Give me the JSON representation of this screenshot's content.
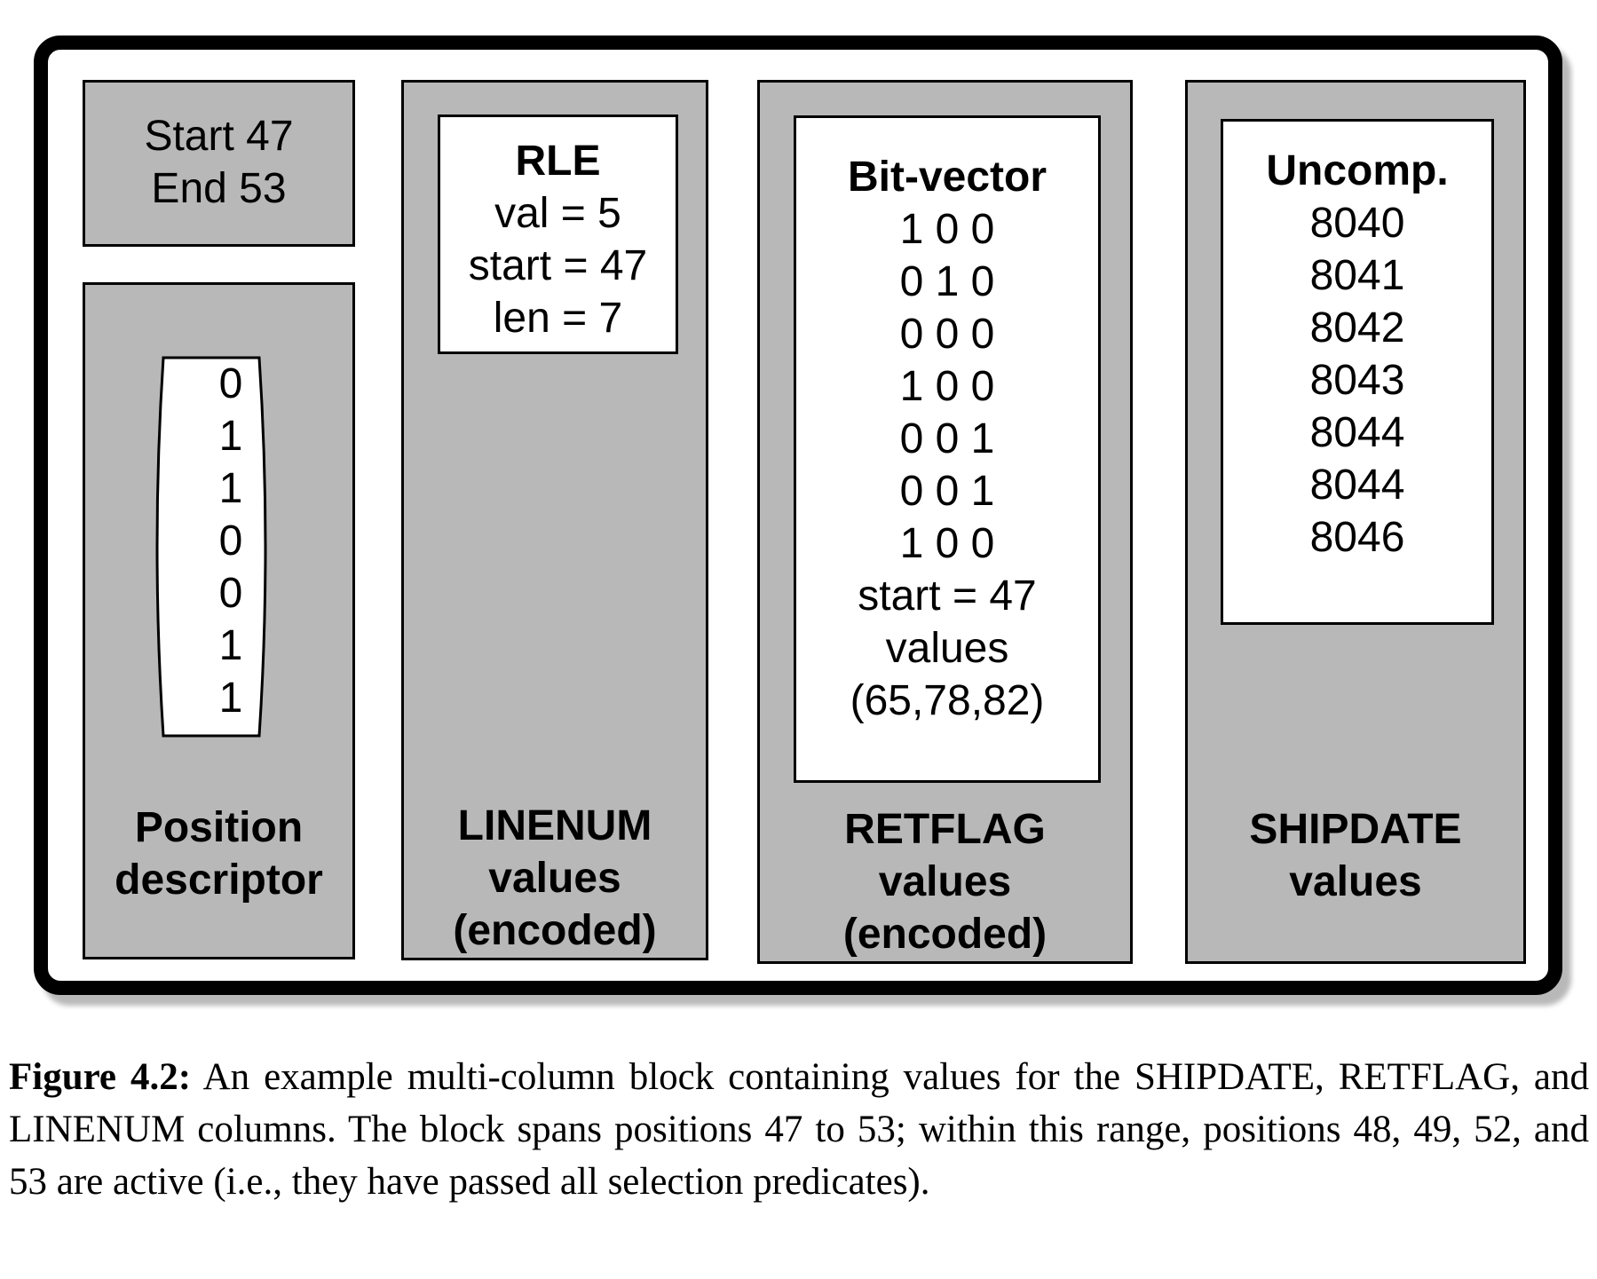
{
  "range": {
    "start_line": "Start 47",
    "end_line": "End 53"
  },
  "position_descriptor": {
    "bits": [
      "0",
      "1",
      "1",
      "0",
      "0",
      "1",
      "1"
    ],
    "label_lines": [
      "Position",
      "descriptor"
    ]
  },
  "linenum": {
    "encoding_title": "RLE",
    "lines": [
      "val = 5",
      "start = 47",
      "len = 7"
    ],
    "label_lines": [
      "LINENUM",
      "values",
      "(encoded)"
    ]
  },
  "retflag": {
    "encoding_title": "Bit-vector",
    "bit_rows": [
      "1 0 0",
      "0 1 0",
      "0 0 0",
      "1 0 0",
      "0 0 1",
      "0 0 1",
      "1 0 0"
    ],
    "start_line": "start = 47",
    "values_line": "values",
    "values_list": "(65,78,82)",
    "label_lines": [
      "RETFLAG",
      "values",
      "(encoded)"
    ]
  },
  "shipdate": {
    "encoding_title": "Uncomp.",
    "values": [
      "8040",
      "8041",
      "8042",
      "8043",
      "8044",
      "8044",
      "8046"
    ],
    "label_lines": [
      "SHIPDATE",
      "values"
    ]
  },
  "caption": {
    "label": "Figure 4.2:",
    "text": "An example multi-column block containing values for the SHIPDATE, RETFLAG, and LINENUM columns. The block spans positions 47 to 53; within this range, positions 48, 49, 52, and 53 are active (i.e., they have passed all selection predicates)."
  }
}
